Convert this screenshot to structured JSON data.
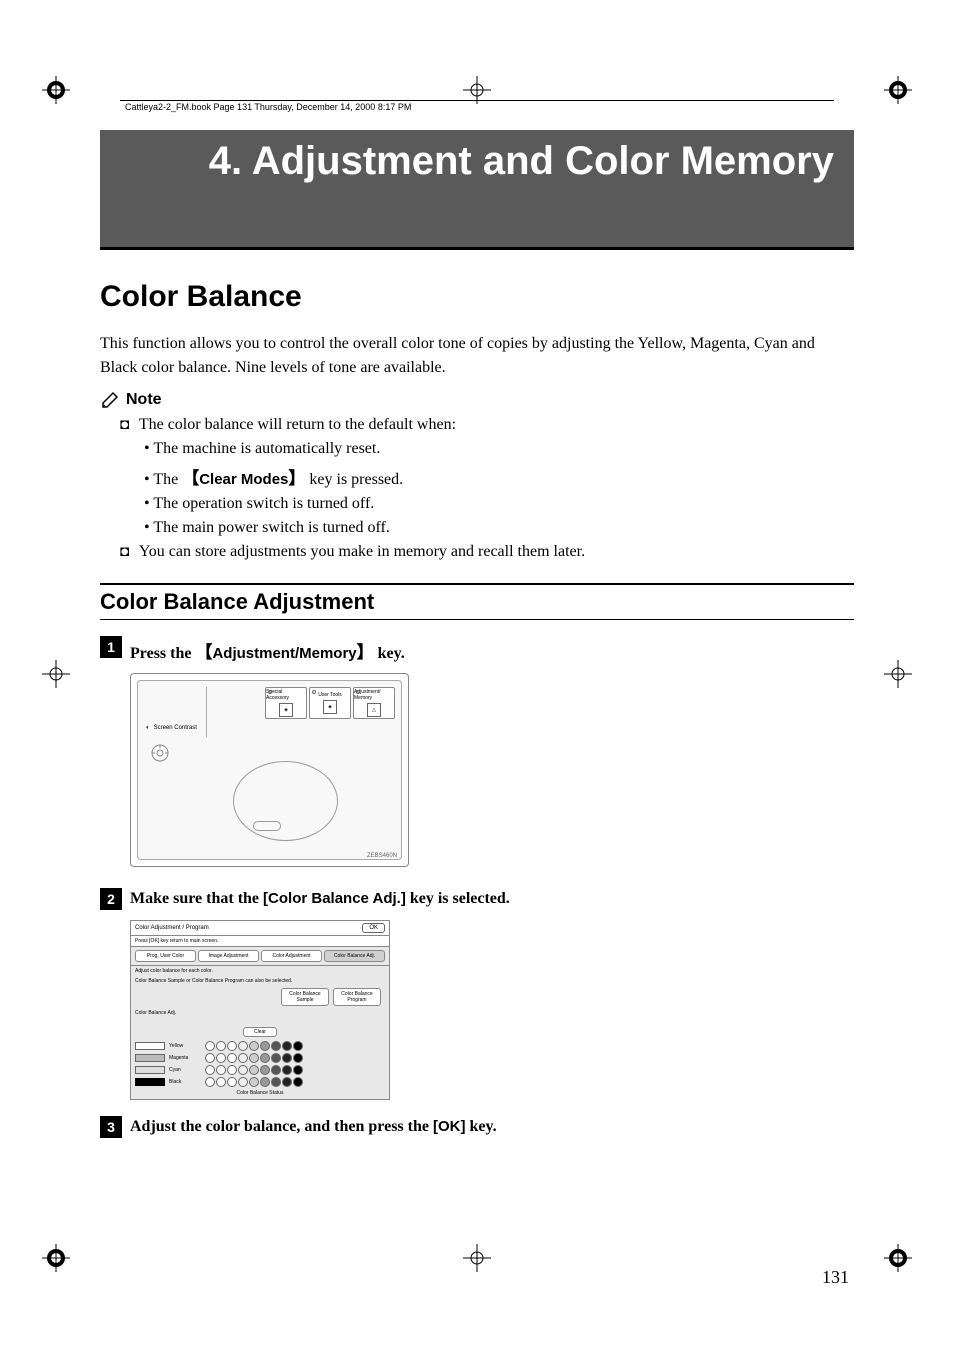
{
  "meta": {
    "book_header": "Cattleya2-2_FM.book  Page 131  Thursday, December 14, 2000  8:17 PM",
    "page_number": "131"
  },
  "chapter": {
    "title": "4. Adjustment and Color Memory"
  },
  "section": {
    "title": "Color Balance",
    "intro": "This function allows you to control the overall color tone of copies by adjusting the Yellow, Magenta, Cyan and Black color balance. Nine levels of tone are available."
  },
  "note": {
    "label": "Note",
    "item1": "The color balance will return to the default when:",
    "sub1": "The machine is automatically reset.",
    "sub2_pre": "The ",
    "sub2_key": "Clear Modes",
    "sub2_post": " key is pressed.",
    "sub3": "The operation switch is turned off.",
    "sub4": "The main power switch is turned off.",
    "item2": "You can store adjustments you make in memory and recall them later."
  },
  "subsection": {
    "title": "Color Balance Adjustment"
  },
  "step1": {
    "num": "1",
    "pre": "Press the ",
    "key": "Adjustment/Memory",
    "post": " key."
  },
  "step2": {
    "num": "2",
    "pre": "Make sure that the ",
    "key": "[Color Balance Adj.]",
    "post": " key is selected."
  },
  "step3": {
    "num": "3",
    "pre": "Adjust the color balance, and then press the ",
    "key": "[OK]",
    "post": " key."
  },
  "diagram": {
    "btn1": "Special Accessory",
    "btn2": "User Tools",
    "btn3": "Adjustment/ Memory",
    "screen_contrast": "Screen Contrast",
    "code": "ZEBS460N"
  },
  "screenshot": {
    "header": "Color Adjustment / Program",
    "ok": "OK",
    "sub": "Press [OK] key return to main screen.",
    "tabs": [
      "Prog. User Color",
      "Image Adjustment",
      "Color Adjustment",
      "Color Balance Adj."
    ],
    "info1": "Adjust color balance for each color.",
    "info2": "Color Balance Sample or Color Balance Program can also be selected.",
    "midbtn1": "Color Balance Sample",
    "midbtn2": "Color Balance Program",
    "label": "Color Balance Adj.",
    "clear": "Clear",
    "rows": [
      {
        "name": "Yellow",
        "swatch_bg": "#ffffff",
        "swatch_border": "#666"
      },
      {
        "name": "Magenta",
        "swatch_bg": "#bbb",
        "swatch_border": "#666"
      },
      {
        "name": "Cyan",
        "swatch_bg": "#ddd",
        "swatch_border": "#666"
      },
      {
        "name": "Black",
        "swatch_bg": "#000",
        "swatch_border": "#000"
      }
    ],
    "circle_fills": [
      "#fff",
      "#fff",
      "#fff",
      "#eee",
      "#ccc",
      "#999",
      "#555",
      "#222",
      "#000"
    ],
    "footer": "Color Balance Status"
  },
  "colors": {
    "header_bg": "#5a5a5a"
  }
}
